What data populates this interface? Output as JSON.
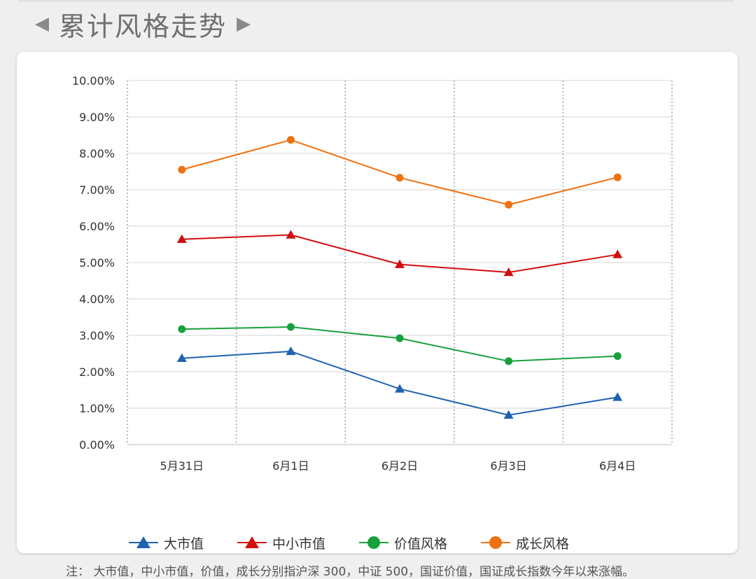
{
  "header": {
    "title": "累计风格走势",
    "left_arrow": "◀",
    "right_arrow": "▶"
  },
  "note": "注： 大市值，中小市值，价值，成长分别指沪深 300，中证 500，国证价值，国证成长指数今年以来涨幅。",
  "chart_data": {
    "type": "line",
    "categories": [
      "5月31日",
      "6月1日",
      "6月2日",
      "6月3日",
      "6月4日"
    ],
    "ylim": [
      0,
      10
    ],
    "yticks": [
      "0.00%",
      "1.00%",
      "2.00%",
      "3.00%",
      "4.00%",
      "5.00%",
      "6.00%",
      "7.00%",
      "8.00%",
      "9.00%",
      "10.00%"
    ],
    "grid": true,
    "legend": "bottom",
    "series": [
      {
        "name": "大市值",
        "values": [
          2.37,
          2.56,
          1.53,
          0.81,
          1.3
        ],
        "color": "#1f63b0",
        "marker": "triangle"
      },
      {
        "name": "中小市值",
        "values": [
          5.64,
          5.76,
          4.95,
          4.73,
          5.22
        ],
        "color": "#d10f0f",
        "marker": "triangle"
      },
      {
        "name": "价值风格",
        "values": [
          3.17,
          3.23,
          2.92,
          2.29,
          2.43
        ],
        "color": "#18a03c",
        "marker": "circle"
      },
      {
        "name": "成长风格",
        "values": [
          7.55,
          8.37,
          7.33,
          6.59,
          7.34
        ],
        "color": "#f07111",
        "marker": "circle"
      }
    ]
  }
}
